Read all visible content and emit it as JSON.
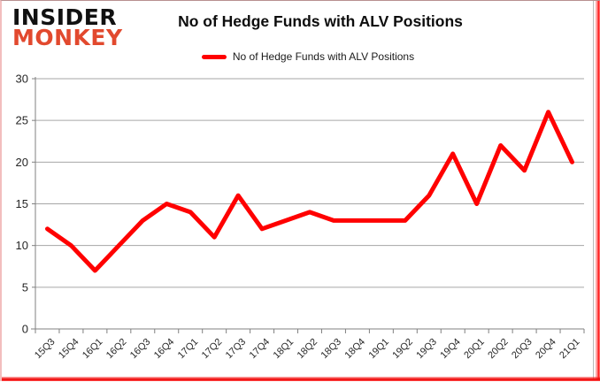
{
  "header": {
    "logo_line1": "INSIDER",
    "logo_line2": "MONKEY",
    "title": "No of Hedge Funds with ALV Positions"
  },
  "legend": {
    "label": "No of Hedge Funds with ALV Positions",
    "swatch_color": "#ff0000"
  },
  "colors": {
    "logo_red": "#e2492e",
    "series_red": "#ff0000",
    "gridline": "#a6a6a6",
    "axis": "#808080"
  },
  "chart_data": {
    "type": "line",
    "title": "No of Hedge Funds with ALV Positions",
    "categories": [
      "15Q3",
      "15Q4",
      "16Q1",
      "16Q2",
      "16Q3",
      "16Q4",
      "17Q1",
      "17Q2",
      "17Q3",
      "17Q4",
      "18Q1",
      "18Q2",
      "18Q3",
      "18Q4",
      "19Q1",
      "19Q2",
      "19Q3",
      "19Q4",
      "20Q1",
      "20Q2",
      "20Q3",
      "20Q4",
      "21Q1"
    ],
    "values": [
      12,
      10,
      7,
      10,
      13,
      15,
      14,
      11,
      16,
      12,
      13,
      14,
      13,
      13,
      13,
      13,
      16,
      21,
      15,
      22,
      19,
      26,
      20
    ],
    "xlabel": "",
    "ylabel": "",
    "ylim": [
      0,
      30
    ],
    "yticks": [
      0,
      5,
      10,
      15,
      20,
      25,
      30
    ],
    "grid": true,
    "legend_position": "top",
    "line_color": "#ff0000",
    "gridline_color": "#a6a6a6",
    "axis_color": "#808080"
  }
}
